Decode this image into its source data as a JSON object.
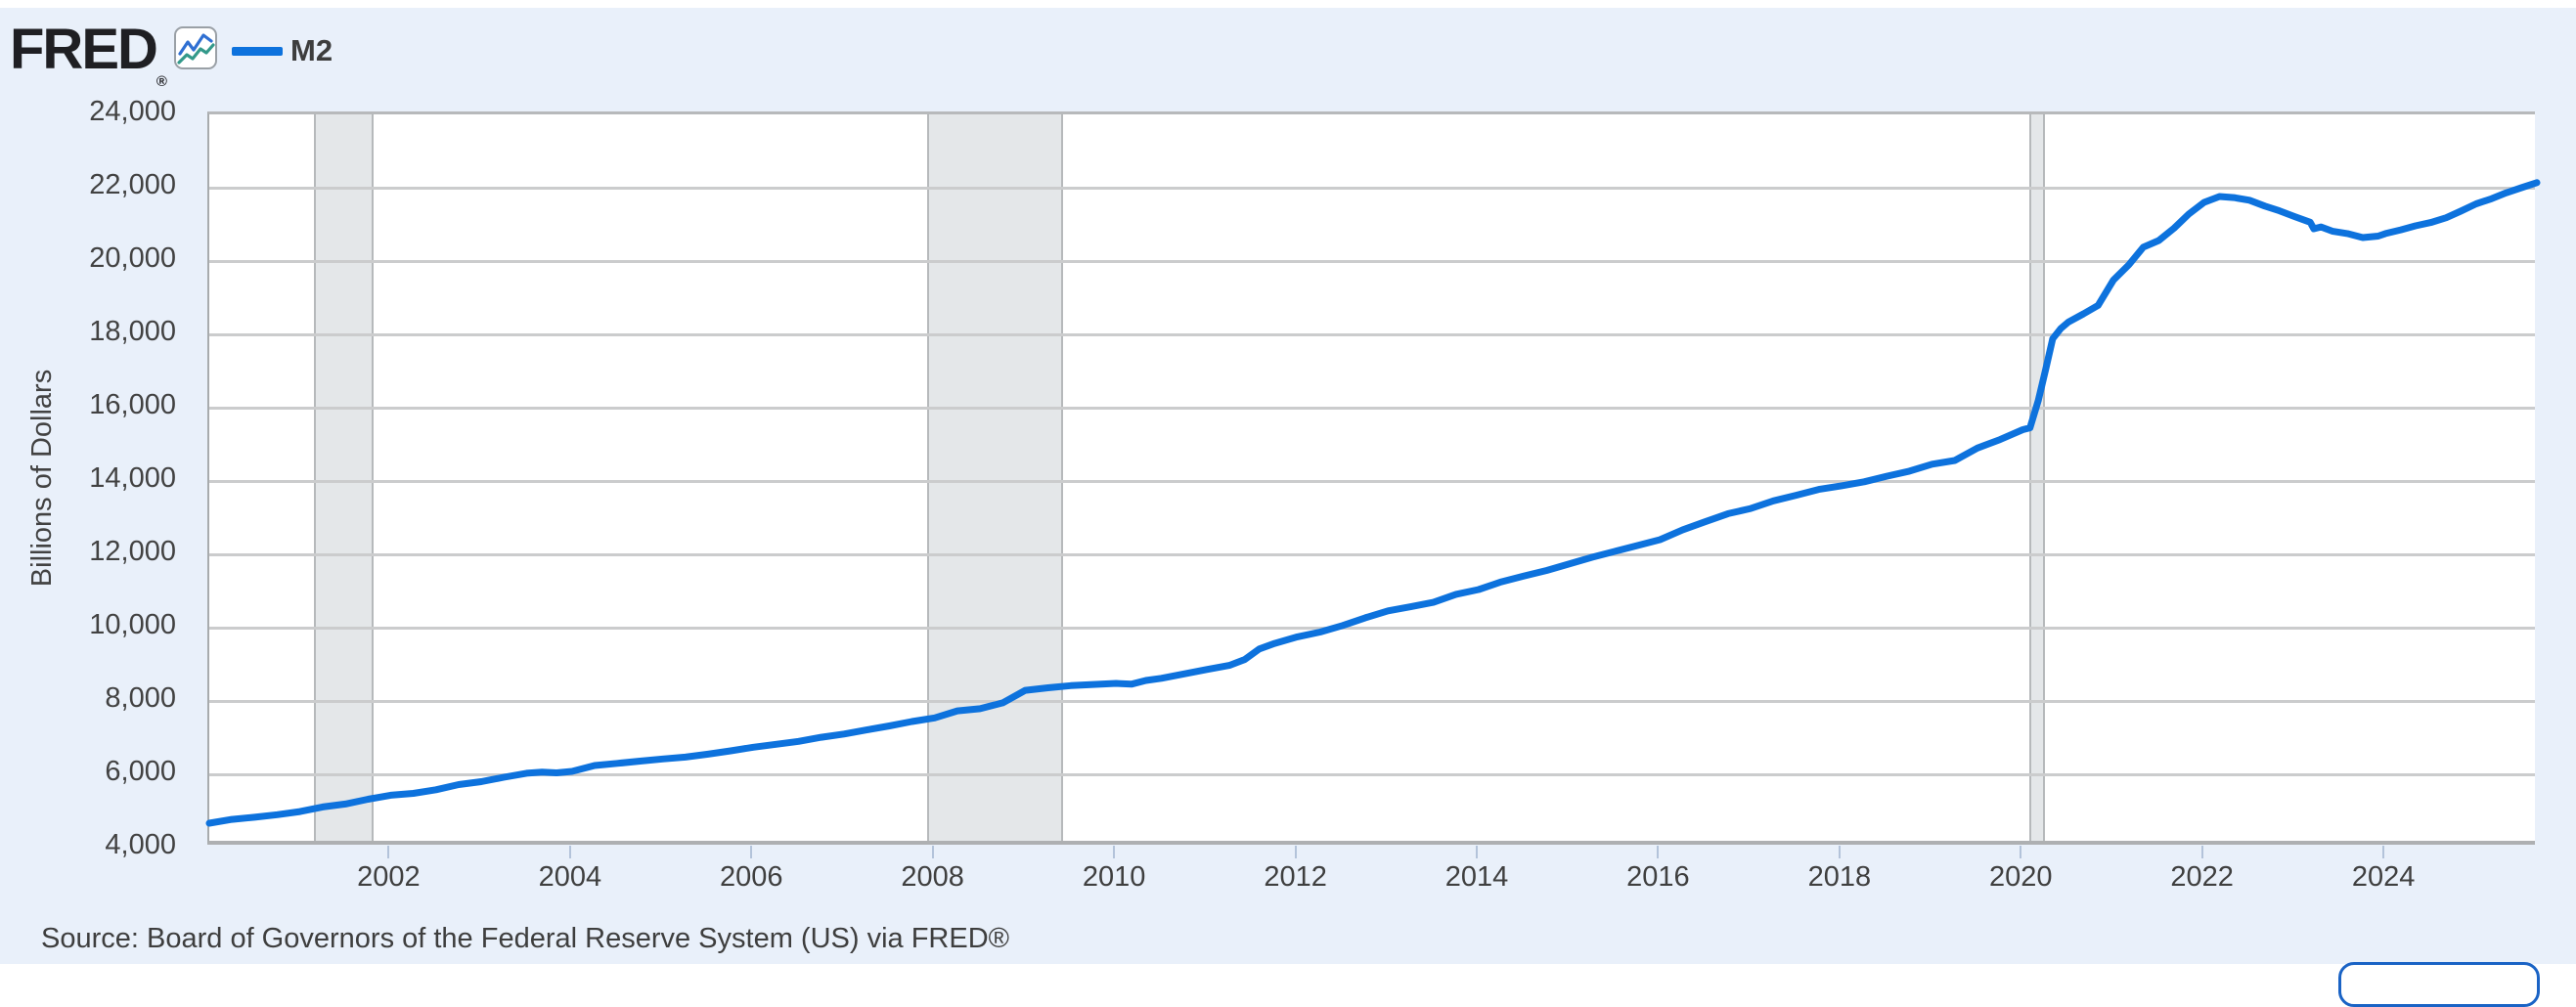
{
  "header": {
    "logo_text": "FRED",
    "registered_mark": "®",
    "legend": {
      "series_label": "M2",
      "swatch_color": "#0d72dd"
    }
  },
  "source_line": "Source: Board of Governors of the Federal Reserve System (US) via FRED®",
  "colors": {
    "page_background": "#e9f0fa",
    "top_strip": "#ffffff",
    "plot_background": "#ffffff",
    "gridline": "#cbcccd",
    "recession_band_fill": "#e4e7e9",
    "recession_band_edge": "#b6b9bb",
    "axis_text": "#424242",
    "tick_mark": "#b3c3da",
    "line_blue": "#0d72dd",
    "logo_black": "#1f1f23",
    "icon_blue": "#2f6fd2",
    "icon_teal": "#33998a",
    "button_border_blue": "#1a63c5"
  },
  "chart_data": {
    "type": "line",
    "title": "",
    "xlabel": "",
    "ylabel": "Billions of Dollars",
    "ylim": [
      4000,
      24000
    ],
    "xlim": [
      2000.0,
      2025.67
    ],
    "grid": "horizontal-only",
    "legend_position": "top-left-header",
    "y_ticks": [
      24000,
      22000,
      20000,
      18000,
      16000,
      14000,
      12000,
      10000,
      8000,
      6000,
      4000
    ],
    "y_tick_labels": [
      "24,000",
      "22,000",
      "20,000",
      "18,000",
      "16,000",
      "14,000",
      "12,000",
      "10,000",
      "8,000",
      "6,000",
      "4,000"
    ],
    "x_ticks": [
      2002,
      2004,
      2006,
      2008,
      2010,
      2012,
      2014,
      2016,
      2018,
      2020,
      2022,
      2024
    ],
    "recession_bands": [
      [
        2001.15,
        2001.81
      ],
      [
        2007.92,
        2009.42
      ],
      [
        2020.07,
        2020.24
      ]
    ],
    "series": [
      {
        "name": "M2",
        "color": "#0d72dd",
        "points": [
          [
            2000.0,
            4667
          ],
          [
            2000.25,
            4770
          ],
          [
            2000.5,
            4830
          ],
          [
            2000.75,
            4900
          ],
          [
            2001.0,
            4983
          ],
          [
            2001.25,
            5110
          ],
          [
            2001.5,
            5190
          ],
          [
            2001.75,
            5320
          ],
          [
            2002.0,
            5430
          ],
          [
            2002.25,
            5480
          ],
          [
            2002.5,
            5580
          ],
          [
            2002.75,
            5720
          ],
          [
            2003.0,
            5800
          ],
          [
            2003.25,
            5920
          ],
          [
            2003.5,
            6030
          ],
          [
            2003.67,
            6060
          ],
          [
            2003.83,
            6040
          ],
          [
            2004.0,
            6080
          ],
          [
            2004.25,
            6240
          ],
          [
            2004.5,
            6300
          ],
          [
            2004.75,
            6360
          ],
          [
            2005.0,
            6420
          ],
          [
            2005.25,
            6470
          ],
          [
            2005.5,
            6550
          ],
          [
            2005.75,
            6640
          ],
          [
            2006.0,
            6740
          ],
          [
            2006.25,
            6820
          ],
          [
            2006.5,
            6900
          ],
          [
            2006.75,
            7010
          ],
          [
            2007.0,
            7100
          ],
          [
            2007.25,
            7210
          ],
          [
            2007.5,
            7320
          ],
          [
            2007.75,
            7440
          ],
          [
            2008.0,
            7540
          ],
          [
            2008.25,
            7730
          ],
          [
            2008.5,
            7790
          ],
          [
            2008.75,
            7950
          ],
          [
            2009.0,
            8290
          ],
          [
            2009.25,
            8360
          ],
          [
            2009.5,
            8420
          ],
          [
            2009.75,
            8450
          ],
          [
            2010.0,
            8480
          ],
          [
            2010.17,
            8460
          ],
          [
            2010.33,
            8560
          ],
          [
            2010.5,
            8620
          ],
          [
            2010.75,
            8740
          ],
          [
            2011.0,
            8860
          ],
          [
            2011.25,
            8970
          ],
          [
            2011.42,
            9130
          ],
          [
            2011.58,
            9420
          ],
          [
            2011.75,
            9570
          ],
          [
            2012.0,
            9750
          ],
          [
            2012.25,
            9880
          ],
          [
            2012.5,
            10060
          ],
          [
            2012.75,
            10270
          ],
          [
            2013.0,
            10460
          ],
          [
            2013.25,
            10570
          ],
          [
            2013.5,
            10690
          ],
          [
            2013.75,
            10910
          ],
          [
            2014.0,
            11040
          ],
          [
            2014.25,
            11250
          ],
          [
            2014.5,
            11410
          ],
          [
            2014.75,
            11560
          ],
          [
            2015.0,
            11740
          ],
          [
            2015.25,
            11920
          ],
          [
            2015.5,
            12080
          ],
          [
            2015.75,
            12240
          ],
          [
            2016.0,
            12400
          ],
          [
            2016.25,
            12670
          ],
          [
            2016.5,
            12890
          ],
          [
            2016.75,
            13110
          ],
          [
            2017.0,
            13250
          ],
          [
            2017.25,
            13460
          ],
          [
            2017.5,
            13610
          ],
          [
            2017.75,
            13770
          ],
          [
            2018.0,
            13870
          ],
          [
            2018.25,
            13980
          ],
          [
            2018.5,
            14130
          ],
          [
            2018.75,
            14270
          ],
          [
            2019.0,
            14460
          ],
          [
            2019.25,
            14560
          ],
          [
            2019.5,
            14900
          ],
          [
            2019.75,
            15130
          ],
          [
            2020.0,
            15400
          ],
          [
            2020.08,
            15450
          ],
          [
            2020.17,
            16190
          ],
          [
            2020.25,
            17020
          ],
          [
            2020.33,
            17880
          ],
          [
            2020.42,
            18160
          ],
          [
            2020.5,
            18330
          ],
          [
            2020.67,
            18560
          ],
          [
            2020.83,
            18790
          ],
          [
            2021.0,
            19480
          ],
          [
            2021.17,
            19900
          ],
          [
            2021.33,
            20380
          ],
          [
            2021.5,
            20560
          ],
          [
            2021.67,
            20900
          ],
          [
            2021.83,
            21280
          ],
          [
            2022.0,
            21600
          ],
          [
            2022.17,
            21760
          ],
          [
            2022.33,
            21730
          ],
          [
            2022.5,
            21660
          ],
          [
            2022.67,
            21500
          ],
          [
            2022.83,
            21370
          ],
          [
            2023.0,
            21210
          ],
          [
            2023.17,
            21060
          ],
          [
            2023.21,
            20880
          ],
          [
            2023.29,
            20930
          ],
          [
            2023.42,
            20810
          ],
          [
            2023.58,
            20750
          ],
          [
            2023.75,
            20640
          ],
          [
            2023.92,
            20680
          ],
          [
            2024.0,
            20750
          ],
          [
            2024.17,
            20850
          ],
          [
            2024.33,
            20960
          ],
          [
            2024.5,
            21050
          ],
          [
            2024.67,
            21180
          ],
          [
            2024.83,
            21360
          ],
          [
            2025.0,
            21560
          ],
          [
            2025.17,
            21700
          ],
          [
            2025.33,
            21860
          ],
          [
            2025.5,
            22000
          ],
          [
            2025.67,
            22140
          ]
        ]
      }
    ]
  }
}
